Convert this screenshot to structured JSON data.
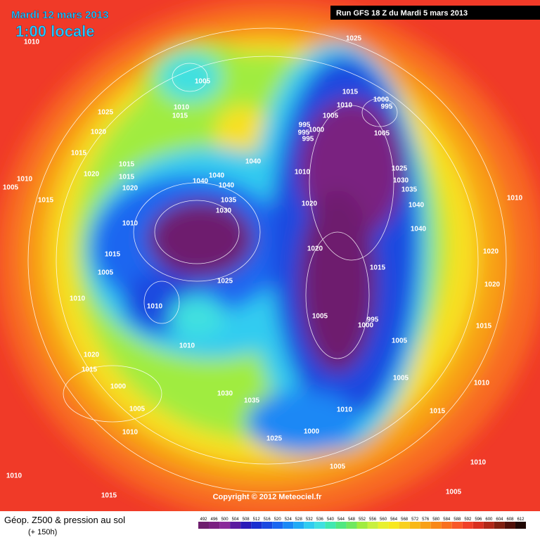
{
  "header": {
    "date": "Mardi 12 mars 2013",
    "time": "1:00 locale",
    "run": "Run GFS 18 Z du Mardi 5 mars 2013"
  },
  "copyright": "Copyright © 2012 Meteociel.fr",
  "footer": {
    "title": "Géop. Z500 & pression au sol",
    "subtitle": "(+ 150h)"
  },
  "colorbar": {
    "values": [
      492,
      496,
      500,
      504,
      508,
      512,
      516,
      520,
      524,
      528,
      532,
      536,
      540,
      544,
      548,
      552,
      556,
      560,
      564,
      568,
      572,
      576,
      580,
      584,
      588,
      592,
      596,
      600,
      604,
      608,
      612
    ],
    "colors": [
      "#6e1f6e",
      "#7a2080",
      "#8a2a99",
      "#5a1aa0",
      "#2a1ab8",
      "#1a2ed0",
      "#1a48e0",
      "#1a66f0",
      "#1a88f5",
      "#20aaf5",
      "#30ccf0",
      "#40e0e0",
      "#40e8b0",
      "#50e880",
      "#70e860",
      "#a0ec40",
      "#c8f040",
      "#e8f030",
      "#f8e820",
      "#f8d020",
      "#f8b818",
      "#f8a018",
      "#f88818",
      "#f87020",
      "#f85828",
      "#f04028",
      "#d83020",
      "#b02818",
      "#802010",
      "#501008",
      "#200804"
    ]
  },
  "isobars": [
    "1010",
    "1025",
    "1005",
    "1025",
    "1010",
    "1015",
    "1020",
    "1015",
    "1015",
    "1020",
    "1015",
    "1020",
    "1010",
    "1005",
    "1015",
    "1040",
    "1040",
    "1040",
    "1040",
    "1035",
    "1030",
    "1010",
    "1015",
    "1005",
    "1025",
    "1010",
    "1010",
    "1010",
    "1020",
    "1015",
    "1000",
    "1005",
    "1030",
    "1035",
    "1010",
    "1025",
    "1000",
    "1010",
    "1005",
    "1010",
    "1015",
    "1015",
    "1010",
    "1005",
    "1000",
    "995",
    "1005",
    "995",
    "995",
    "1000",
    "995",
    "1010",
    "1020",
    "1025",
    "1030",
    "1035",
    "1040",
    "1040",
    "1020",
    "1015",
    "1005",
    "995",
    "1000",
    "1005",
    "1005",
    "1010",
    "1015",
    "1010",
    "1005",
    "1010",
    "1020",
    "1020",
    "1015"
  ]
}
